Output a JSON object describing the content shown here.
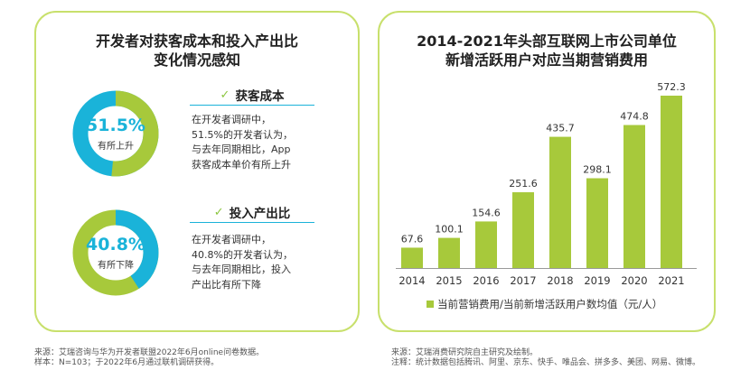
{
  "left": {
    "title_line1": "开发者对获客成本和投入产出比",
    "title_line2": "变化情况感知",
    "items": [
      {
        "heading": "获客成本",
        "percent_label": "51.5%",
        "percent_value": 51.5,
        "caption": "有所上升",
        "desc": [
          "在开发者调研中，",
          "51.5%的开发者认为，",
          "与去年同期相比，App",
          "获客成本单价有所上升"
        ]
      },
      {
        "heading": "投入产出比",
        "percent_label": "40.8%",
        "percent_value": 40.8,
        "caption": "有所下降",
        "desc": [
          "在开发者调研中，",
          "40.8%的开发者认为，",
          "与去年同期相比，投入",
          "产出比有所下降"
        ]
      }
    ],
    "check_symbol": "✓",
    "source_line1": "来源：艾瑞咨询与华为开发者联盟2022年6月online问卷数据。",
    "source_line2": "样本：N=103；于2022年6月通过联机调研获得。"
  },
  "chart_data": {
    "type": "bar",
    "title": "2014-2021年头部互联网上市公司单位新增活跃用户对应当期营销费用",
    "title_line1": "2014-2021年头部互联网上市公司单位",
    "title_line2": "新增活跃用户对应当期营销费用",
    "categories": [
      "2014",
      "2015",
      "2016",
      "2017",
      "2018",
      "2019",
      "2020",
      "2021"
    ],
    "values": [
      67.6,
      100.1,
      154.6,
      251.6,
      435.7,
      298.1,
      474.8,
      572.3
    ],
    "value_labels": [
      "67.6",
      "100.1",
      "154.6",
      "251.6",
      "435.7",
      "298.1",
      "474.8",
      "572.3"
    ],
    "legend": "当前营销费用/当前新增活跃用户数均值（元/人）",
    "legend_placement": "bottom",
    "ylim": [
      0,
      572.3
    ],
    "grid": false
  },
  "right": {
    "source_line1": "来源：艾瑞消费研究院自主研究及绘制。",
    "source_line2": "注释：统计数据包括腾讯、阿里、京东、快手、唯品会、拼多多、美团、网易、微博。"
  },
  "colors": {
    "green": "#a7c93b",
    "blue": "#1ab3d9",
    "border": "#c8e06c",
    "bar": "#a7c93b"
  }
}
